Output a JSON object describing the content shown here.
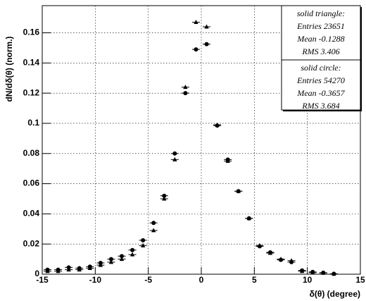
{
  "chart_data": {
    "type": "scatter",
    "x_label": "δ(θ) (degree)",
    "y_label": "dN/dδ(θ) (norm.)",
    "xlim": [
      -15,
      15
    ],
    "ylim": [
      0,
      0.178
    ],
    "xticks": [
      -15,
      -10,
      -5,
      0,
      5,
      10,
      15
    ],
    "yticks": [
      0,
      0.02,
      0.04,
      0.06,
      0.08,
      0.1,
      0.12,
      0.14,
      0.16
    ],
    "grid": true,
    "x": [
      -14.5,
      -13.5,
      -12.5,
      -11.5,
      -10.5,
      -9.5,
      -8.5,
      -7.5,
      -6.5,
      -5.5,
      -4.5,
      -3.5,
      -2.5,
      -1.5,
      -0.5,
      0.5,
      1.5,
      2.5,
      3.5,
      4.5,
      5.5,
      6.5,
      7.5,
      8.5,
      9.5,
      10.5,
      11.5,
      12.5
    ],
    "series": [
      {
        "name": "solid triangle",
        "color": "#000000",
        "marker": "triangle",
        "values": [
          0.002,
          0.002,
          0.003,
          0.003,
          0.004,
          0.006,
          0.008,
          0.01,
          0.013,
          0.019,
          0.029,
          0.05,
          0.076,
          0.124,
          0.167,
          0.164,
          0.099,
          0.075,
          0.055,
          0.037,
          0.019,
          0.014,
          0.01,
          0.009,
          0.002,
          0.001,
          0.0008,
          0.0002
        ]
      },
      {
        "name": "solid circle",
        "color": "#000000",
        "marker": "circle",
        "values": [
          0.003,
          0.003,
          0.0045,
          0.004,
          0.005,
          0.0075,
          0.01,
          0.012,
          0.016,
          0.0225,
          0.034,
          0.052,
          0.08,
          0.12,
          0.149,
          0.1525,
          0.0985,
          0.076,
          0.055,
          0.037,
          0.0185,
          0.0145,
          0.0095,
          0.008,
          0.0025,
          0.0015,
          0.001,
          0.0003
        ]
      }
    ],
    "stats": [
      {
        "title": "solid triangle:",
        "lines": [
          "Entries 23651",
          "Mean -0.1288",
          "RMS 3.406"
        ]
      },
      {
        "title": "solid circle:",
        "lines": [
          "Entries 54270",
          "Mean -0.3657",
          "RMS 3.684"
        ]
      }
    ]
  }
}
